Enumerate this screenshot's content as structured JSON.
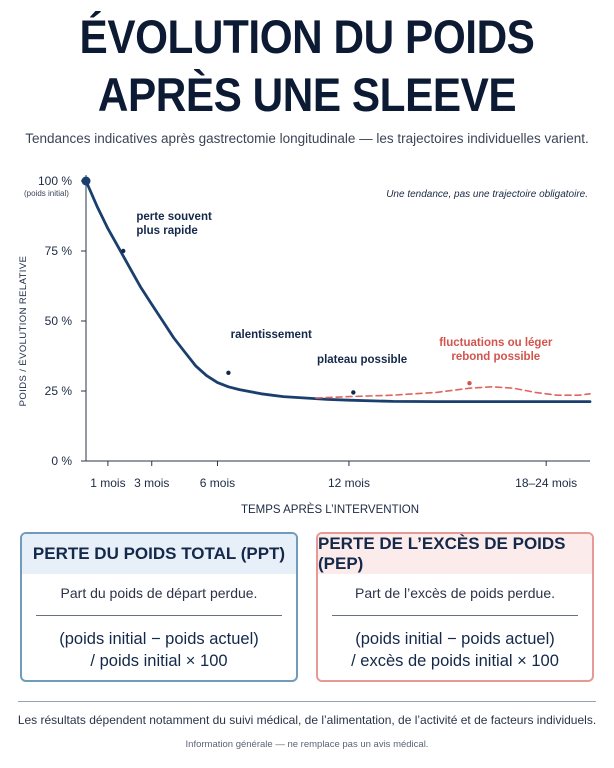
{
  "title_line1": "ÉVOLUTION DU POIDS",
  "title_line2": "APRÈS UNE SLEEVE",
  "subtitle": "Tendances indicatives après gastrectomie longitudinale — les trajectoires individuelles varient.",
  "chart_data": {
    "type": "line",
    "xlabel": "TEMPS APRÈS L’INTERVENTION",
    "ylabel": "POIDS / ÉVOLUTION RELATIVE",
    "ylim": [
      0,
      100
    ],
    "x_ticks": [
      {
        "label": "1 mois",
        "x": 1
      },
      {
        "label": "3 mois",
        "x": 3
      },
      {
        "label": "6 mois",
        "x": 6
      },
      {
        "label": "12 mois",
        "x": 12
      },
      {
        "label": "18–24 mois",
        "x": 21
      }
    ],
    "y_ticks": [
      {
        "label": "0 %",
        "y": 0
      },
      {
        "label": "25 %",
        "y": 25
      },
      {
        "label": "50 %",
        "y": 50
      },
      {
        "label": "75 %",
        "y": 75
      },
      {
        "label": "100 %",
        "y": 100
      }
    ],
    "y_top_sublabel": "(poids initial)",
    "note": "Une tendance, pas une trajectoire obligatoire.",
    "grid": false,
    "series": [
      {
        "color": "#1a3f6e",
        "points": [
          [
            0,
            100
          ],
          [
            0.5,
            91
          ],
          [
            1,
            83
          ],
          [
            1.5,
            76
          ],
          [
            2,
            69
          ],
          [
            2.5,
            62
          ],
          [
            3,
            56
          ],
          [
            3.5,
            50
          ],
          [
            4,
            44
          ],
          [
            4.5,
            39
          ],
          [
            5,
            34
          ],
          [
            5.5,
            30.5
          ],
          [
            6,
            28
          ],
          [
            6.5,
            26.5
          ],
          [
            7,
            25.5
          ],
          [
            8,
            24
          ],
          [
            9,
            23
          ],
          [
            10,
            22.5
          ],
          [
            11,
            22
          ],
          [
            12,
            21.7
          ],
          [
            14,
            21.3
          ],
          [
            16,
            21.2
          ],
          [
            18,
            21.2
          ],
          [
            20,
            21.2
          ],
          [
            22,
            21.2
          ],
          [
            23,
            21.2
          ]
        ]
      },
      {
        "color": "#e0655e",
        "dashed": true,
        "points": [
          [
            10.5,
            22.5
          ],
          [
            12,
            23
          ],
          [
            14,
            23.5
          ],
          [
            16,
            24.5
          ],
          [
            17.5,
            26
          ],
          [
            18.5,
            26.5
          ],
          [
            19.5,
            26
          ],
          [
            20.5,
            24.5
          ],
          [
            21.5,
            23.5
          ],
          [
            22.5,
            23.5
          ],
          [
            23,
            24
          ]
        ]
      }
    ],
    "annotations": [
      {
        "text": [
          "perte souvent",
          "plus rapide"
        ],
        "x": 2.1,
        "y": 75,
        "color": "#14284a"
      },
      {
        "text": [
          "ralentissement"
        ],
        "x": 6,
        "y": 32,
        "color": "#14284a"
      },
      {
        "text": [
          "plateau possible"
        ],
        "x": 12.2,
        "y": 25,
        "color": "#14284a"
      },
      {
        "text": [
          "fluctuations ou léger",
          "rebond possible"
        ],
        "x": 18.5,
        "y": 27.5,
        "color": "#d2544d"
      }
    ]
  },
  "cards": {
    "ppt": {
      "title": "PERTE DU POIDS TOTAL (PPT)",
      "desc": "Part du poids de départ perdue.",
      "formula1": "(poids initial − poids actuel)",
      "formula2": "/ poids initial × 100"
    },
    "pep": {
      "title": "PERTE DE L’EXCÈS DE POIDS (PEP)",
      "desc": "Part de l’excès de poids perdue.",
      "formula1": "(poids initial − poids actuel)",
      "formula2": "/ excès de poids initial × 100"
    }
  },
  "footer1": "Les résultats dépendent notamment du suivi médical, de l’alimentation, de l’activité et de facteurs individuels.",
  "footer2": "Information générale — ne remplace pas un avis médical."
}
